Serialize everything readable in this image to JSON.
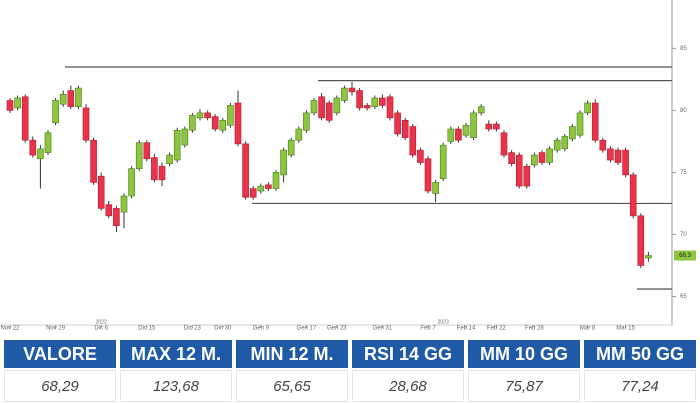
{
  "chart_data": {
    "type": "candlestick",
    "categories": [
      "Nov 22",
      null,
      null,
      null,
      null,
      null,
      "Nov 29",
      null,
      null,
      null,
      null,
      null,
      "Dic 6",
      null,
      null,
      null,
      null,
      null,
      "Dic 15",
      null,
      null,
      null,
      null,
      null,
      "Dic 23",
      null,
      null,
      null,
      "Dic 30",
      null,
      null,
      null,
      null,
      "Gen 9",
      null,
      null,
      null,
      null,
      null,
      "Gen 17",
      null,
      null,
      null,
      "Gen 23",
      null,
      null,
      null,
      null,
      null,
      "Gen 31",
      null,
      null,
      null,
      null,
      null,
      "Feb 7",
      null,
      null,
      null,
      null,
      "Feb 14",
      null,
      null,
      null,
      "Feb 22",
      null,
      null,
      null,
      null,
      "Feb 28",
      null,
      null,
      null,
      null,
      null,
      null,
      "Mar 8",
      null,
      null,
      null,
      null,
      "Mar 15",
      null,
      null,
      null,
      null
    ],
    "years": [
      null,
      null,
      null,
      null,
      null,
      null,
      null,
      null,
      null,
      null,
      null,
      null,
      "2022",
      null,
      null,
      null,
      null,
      null,
      null,
      null,
      null,
      null,
      null,
      null,
      null,
      null,
      null,
      null,
      null,
      null,
      null,
      null,
      null,
      null,
      null,
      null,
      null,
      null,
      null,
      null,
      null,
      null,
      null,
      null,
      null,
      null,
      null,
      null,
      null,
      null,
      null,
      null,
      null,
      null,
      null,
      null,
      null,
      "2023",
      null,
      null,
      null,
      null,
      null,
      null,
      null,
      null,
      null,
      null,
      null,
      null,
      null,
      null,
      null,
      null,
      null,
      null,
      null,
      null,
      null,
      null,
      null,
      null,
      null,
      null,
      null
    ],
    "open": [
      80.8,
      80.2,
      81.1,
      77.6,
      76.1,
      76.6,
      79.0,
      80.5,
      81.6,
      80.3,
      80.2,
      77.6,
      74.7,
      72.4,
      72.1,
      71.8,
      73.1,
      75.3,
      77.4,
      76.2,
      75.5,
      75.7,
      76.0,
      77.2,
      78.4,
      79.4,
      79.8,
      79.5,
      78.4,
      78.8,
      80.6,
      77.3,
      73.7,
      73.5,
      74.0,
      73.7,
      74.8,
      76.4,
      77.6,
      78.4,
      79.8,
      81.1,
      80.6,
      79.8,
      80.8,
      81.8,
      81.6,
      80.4,
      80.3,
      81.0,
      81.1,
      79.8,
      79.2,
      78.7,
      76.8,
      76.1,
      73.3,
      74.5,
      77.5,
      78.5,
      78.0,
      77.8,
      79.8,
      78.9,
      78.9,
      78.2,
      76.6,
      76.4,
      75.5,
      75.6,
      76.6,
      75.8,
      76.8,
      76.9,
      77.7,
      78.0,
      79.8,
      80.6,
      77.6,
      76.9,
      76.8,
      76.8,
      74.8,
      71.5,
      68.1
    ],
    "high": [
      81.0,
      81.2,
      81.3,
      77.9,
      77.2,
      78.4,
      81.0,
      81.6,
      82.0,
      82.0,
      80.5,
      77.8,
      75.0,
      72.7,
      72.3,
      73.3,
      75.5,
      77.6,
      77.6,
      76.5,
      75.8,
      76.6,
      78.6,
      78.7,
      79.8,
      80.1,
      80.0,
      79.7,
      79.4,
      80.6,
      81.6,
      77.5,
      73.9,
      74.1,
      74.2,
      75.2,
      77.0,
      77.8,
      78.7,
      80.0,
      81.0,
      81.4,
      80.8,
      81.2,
      82.0,
      82.3,
      81.8,
      80.6,
      81.2,
      81.3,
      81.3,
      80.0,
      79.4,
      78.9,
      77.0,
      76.3,
      74.4,
      77.4,
      78.7,
      78.7,
      79.0,
      80.0,
      80.5,
      79.2,
      79.1,
      78.4,
      76.8,
      76.6,
      75.7,
      76.6,
      76.8,
      77.1,
      77.8,
      78.1,
      78.9,
      80.0,
      80.8,
      80.9,
      77.8,
      77.1,
      77.0,
      77.0,
      75.0,
      71.7,
      68.6
    ],
    "low": [
      79.8,
      80.0,
      77.4,
      76.2,
      73.7,
      76.4,
      78.8,
      80.3,
      80.1,
      80.1,
      77.4,
      74.0,
      71.9,
      71.3,
      70.2,
      70.5,
      72.9,
      75.1,
      75.9,
      74.2,
      73.9,
      75.5,
      75.8,
      77.0,
      78.2,
      79.2,
      79.2,
      78.3,
      78.2,
      78.6,
      77.1,
      72.8,
      72.8,
      73.3,
      73.5,
      73.5,
      74.2,
      76.2,
      77.4,
      78.2,
      79.6,
      79.2,
      79.0,
      79.6,
      80.6,
      81.2,
      80.0,
      80.0,
      80.1,
      80.2,
      79.2,
      77.9,
      77.6,
      76.2,
      75.6,
      73.3,
      72.6,
      74.3,
      77.3,
      77.4,
      77.8,
      77.6,
      79.6,
      78.3,
      78.3,
      76.2,
      75.5,
      73.7,
      73.7,
      75.4,
      75.6,
      75.6,
      76.6,
      76.7,
      77.5,
      77.8,
      79.6,
      77.4,
      76.6,
      75.8,
      75.6,
      74.6,
      71.3,
      67.3,
      67.8
    ],
    "close": [
      80.0,
      81.0,
      77.6,
      76.4,
      76.9,
      78.2,
      80.8,
      81.3,
      80.3,
      81.8,
      77.6,
      74.2,
      72.1,
      71.5,
      70.7,
      73.1,
      75.3,
      77.4,
      76.1,
      74.4,
      74.4,
      76.4,
      78.4,
      78.5,
      79.6,
      79.8,
      79.4,
      78.5,
      79.2,
      80.4,
      77.3,
      73.0,
      73.0,
      73.9,
      73.7,
      75.0,
      76.8,
      77.6,
      78.5,
      79.8,
      80.8,
      79.4,
      79.2,
      81.0,
      81.8,
      81.5,
      80.2,
      80.2,
      81.0,
      80.4,
      79.4,
      78.1,
      77.8,
      76.4,
      75.8,
      73.5,
      74.2,
      77.2,
      78.5,
      77.6,
      78.8,
      79.8,
      80.3,
      78.5,
      78.5,
      76.4,
      75.7,
      73.9,
      73.9,
      76.4,
      75.8,
      76.9,
      77.6,
      77.9,
      78.7,
      79.8,
      80.6,
      77.6,
      76.8,
      76.0,
      75.8,
      74.8,
      71.5,
      67.5,
      68.3
    ],
    "up_color": "#8cc63f",
    "down_color": "#e8334a",
    "levels": [
      83.5,
      82.4,
      72.5,
      65.6
    ],
    "last_price": 68.3,
    "ylim": [
      62.7,
      88.9
    ],
    "yticks": [
      65,
      70,
      75,
      80,
      85
    ]
  },
  "table": {
    "headers": [
      "VALORE",
      "MAX 12 M.",
      "MIN 12 M.",
      "RSI 14 GG",
      "MM 10 GG",
      "MM 50 GG"
    ],
    "rows": [
      [
        "68,29",
        "123,68",
        "65,65",
        "28,68",
        "75,87",
        "77,24"
      ]
    ]
  }
}
